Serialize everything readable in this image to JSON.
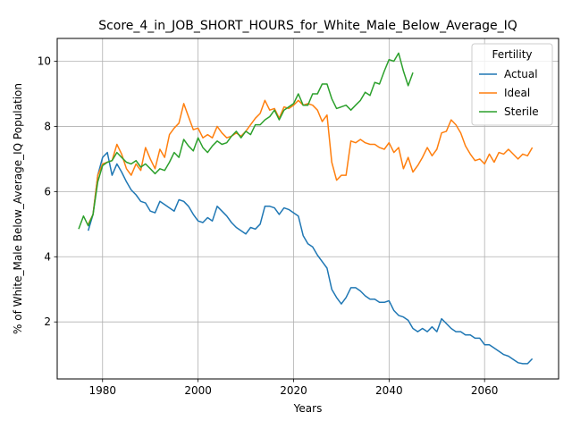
{
  "chart_data": {
    "type": "line",
    "title": "Score_4_in_JOB_SHORT_HOURS_for_White_Male_Below_Average_IQ",
    "xlabel": "Years",
    "ylabel": "% of White_Male Below_Average_IQ Population",
    "xlim": [
      1970.5,
      2075.5
    ],
    "ylim": [
      0.25,
      10.7
    ],
    "xticks": [
      1980,
      2000,
      2020,
      2040,
      2060
    ],
    "yticks": [
      2,
      4,
      6,
      8,
      10
    ],
    "grid": true,
    "legend": {
      "title": "Fertility",
      "placement": "top-right"
    },
    "series": [
      {
        "name": "Actual",
        "color": "#1f77b4",
        "x": [
          1977,
          1978,
          1979,
          1980,
          1981,
          1982,
          1983,
          1984,
          1985,
          1986,
          1987,
          1988,
          1989,
          1990,
          1991,
          1992,
          1993,
          1994,
          1995,
          1996,
          1997,
          1998,
          1999,
          2000,
          2001,
          2002,
          2003,
          2004,
          2005,
          2006,
          2007,
          2008,
          2009,
          2010,
          2011,
          2012,
          2013,
          2014,
          2015,
          2016,
          2017,
          2018,
          2019,
          2020,
          2021,
          2022,
          2023,
          2024,
          2025,
          2026,
          2027,
          2028,
          2029,
          2030,
          2031,
          2032,
          2033,
          2034,
          2035,
          2036,
          2037,
          2038,
          2039,
          2040,
          2041,
          2042,
          2043,
          2044,
          2045,
          2046,
          2047,
          2048,
          2049,
          2050,
          2051,
          2052,
          2053,
          2054,
          2055,
          2056,
          2057,
          2058,
          2059,
          2060,
          2061,
          2062,
          2063,
          2064,
          2065,
          2066,
          2067,
          2068,
          2069,
          2070
        ],
        "y": [
          4.8,
          5.3,
          6.5,
          7.05,
          7.2,
          6.5,
          6.85,
          6.6,
          6.3,
          6.05,
          5.9,
          5.7,
          5.65,
          5.4,
          5.35,
          5.7,
          5.6,
          5.5,
          5.4,
          5.75,
          5.7,
          5.55,
          5.3,
          5.1,
          5.05,
          5.2,
          5.1,
          5.55,
          5.4,
          5.25,
          5.05,
          4.9,
          4.8,
          4.7,
          4.9,
          4.85,
          5.0,
          5.55,
          5.55,
          5.5,
          5.3,
          5.5,
          5.45,
          5.35,
          5.25,
          4.65,
          4.4,
          4.3,
          4.05,
          3.85,
          3.65,
          3.0,
          2.75,
          2.55,
          2.75,
          3.05,
          3.05,
          2.95,
          2.8,
          2.7,
          2.7,
          2.6,
          2.6,
          2.65,
          2.35,
          2.2,
          2.15,
          2.05,
          1.8,
          1.7,
          1.8,
          1.7,
          1.85,
          1.7,
          2.1,
          1.95,
          1.8,
          1.7,
          1.7,
          1.6,
          1.6,
          1.5,
          1.5,
          1.3,
          1.3,
          1.2,
          1.1,
          1.0,
          0.95,
          0.85,
          0.75,
          0.72,
          0.72,
          0.87
        ]
      },
      {
        "name": "Ideal",
        "color": "#ff7f0e",
        "x": [
          1977,
          1978,
          1979,
          1980,
          1981,
          1982,
          1983,
          1984,
          1985,
          1986,
          1987,
          1988,
          1989,
          1990,
          1991,
          1992,
          1993,
          1994,
          1995,
          1996,
          1997,
          1998,
          1999,
          2000,
          2001,
          2002,
          2003,
          2004,
          2005,
          2006,
          2007,
          2008,
          2009,
          2010,
          2011,
          2012,
          2013,
          2014,
          2015,
          2016,
          2017,
          2018,
          2019,
          2020,
          2021,
          2022,
          2023,
          2024,
          2025,
          2026,
          2027,
          2028,
          2029,
          2030,
          2031,
          2032,
          2033,
          2034,
          2035,
          2036,
          2037,
          2038,
          2039,
          2040,
          2041,
          2042,
          2043,
          2044,
          2045,
          2046,
          2047,
          2048,
          2049,
          2050,
          2051,
          2052,
          2053,
          2054,
          2055,
          2056,
          2057,
          2058,
          2059,
          2060,
          2061,
          2062,
          2063,
          2064,
          2065,
          2066,
          2067,
          2068,
          2069,
          2070
        ],
        "y": [
          5.0,
          5.3,
          6.5,
          6.85,
          6.9,
          6.95,
          7.45,
          7.15,
          6.7,
          6.5,
          6.85,
          6.65,
          7.35,
          7.0,
          6.7,
          7.3,
          7.05,
          7.75,
          7.95,
          8.1,
          8.7,
          8.3,
          7.9,
          7.95,
          7.65,
          7.75,
          7.65,
          8.0,
          7.8,
          7.65,
          7.7,
          7.8,
          7.7,
          7.85,
          8.05,
          8.25,
          8.4,
          8.8,
          8.5,
          8.55,
          8.25,
          8.6,
          8.55,
          8.65,
          8.8,
          8.65,
          8.7,
          8.65,
          8.5,
          8.15,
          8.35,
          6.9,
          6.35,
          6.5,
          6.5,
          7.55,
          7.5,
          7.6,
          7.5,
          7.45,
          7.45,
          7.35,
          7.3,
          7.5,
          7.2,
          7.35,
          6.7,
          7.05,
          6.6,
          6.8,
          7.05,
          7.35,
          7.1,
          7.3,
          7.8,
          7.85,
          8.2,
          8.05,
          7.8,
          7.4,
          7.15,
          6.95,
          7.0,
          6.85,
          7.15,
          6.9,
          7.2,
          7.15,
          7.3,
          7.15,
          7.0,
          7.15,
          7.1,
          7.35
        ]
      },
      {
        "name": "Sterile",
        "color": "#2ca02c",
        "x": [
          1975,
          1976,
          1977,
          1978,
          1979,
          1980,
          1981,
          1982,
          1983,
          1984,
          1985,
          1986,
          1987,
          1988,
          1989,
          1990,
          1991,
          1992,
          1993,
          1994,
          1995,
          1996,
          1997,
          1998,
          1999,
          2000,
          2001,
          2002,
          2003,
          2004,
          2005,
          2006,
          2007,
          2008,
          2009,
          2010,
          2011,
          2012,
          2013,
          2014,
          2015,
          2016,
          2017,
          2018,
          2019,
          2020,
          2021,
          2022,
          2023,
          2024,
          2025,
          2026,
          2027,
          2028,
          2029,
          2030,
          2031,
          2032,
          2033,
          2034,
          2035,
          2036,
          2037,
          2038,
          2039,
          2040,
          2041,
          2042,
          2043,
          2044,
          2045
        ],
        "y": [
          4.85,
          5.25,
          4.95,
          5.3,
          6.3,
          6.8,
          6.9,
          6.95,
          7.2,
          7.05,
          6.9,
          6.85,
          6.95,
          6.75,
          6.85,
          6.7,
          6.55,
          6.7,
          6.65,
          6.9,
          7.2,
          7.05,
          7.6,
          7.4,
          7.25,
          7.65,
          7.35,
          7.2,
          7.4,
          7.55,
          7.45,
          7.5,
          7.7,
          7.85,
          7.65,
          7.85,
          7.75,
          8.05,
          8.05,
          8.2,
          8.3,
          8.5,
          8.2,
          8.5,
          8.6,
          8.7,
          9.0,
          8.65,
          8.65,
          9.0,
          9.0,
          9.3,
          9.3,
          8.85,
          8.55,
          8.6,
          8.65,
          8.5,
          8.65,
          8.8,
          9.05,
          8.95,
          9.35,
          9.3,
          9.7,
          10.05,
          10.0,
          10.25,
          9.7,
          9.25,
          9.65
        ]
      }
    ]
  }
}
